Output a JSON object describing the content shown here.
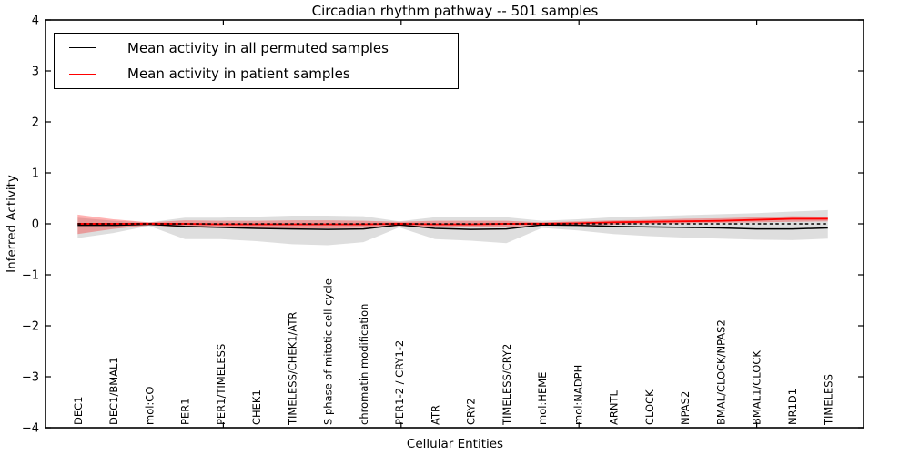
{
  "title": "Circadian rhythm pathway -- 501 samples",
  "legend": {
    "entries": [
      {
        "label": "Mean activity in all permuted samples",
        "color": "#000000"
      },
      {
        "label": "Mean activity in patient samples",
        "color": "#ff0000"
      }
    ]
  },
  "colors": {
    "permuted_line": "#000000",
    "patient_line": "#ff0000",
    "permuted_band": "#000000",
    "patient_band": "#ff0000",
    "zero_line": "#000000",
    "axes": "#000000",
    "background": "#ffffff"
  },
  "chart_data": {
    "type": "line",
    "title": "Circadian rhythm pathway -- 501 samples",
    "xlabel": "Cellular Entities",
    "ylabel": "Inferred Activity",
    "ylim": [
      -4,
      4
    ],
    "yticks": [
      -4,
      -3,
      -2,
      -1,
      0,
      1,
      2,
      3,
      4
    ],
    "yticklabels": [
      "−4",
      "−3",
      "−2",
      "−1",
      "0",
      "1",
      "2",
      "3",
      "4"
    ],
    "grid": false,
    "legend_position": "upper left",
    "categories": [
      "DEC1",
      "DEC1/BMAL1",
      "mol:CO",
      "PER1",
      "PER1/TIMELESS",
      "CHEK1",
      "TIMELESS/CHEK1/ATR",
      "S phase of mitotic cell cycle",
      "chromatin modification",
      "PER1-2 / CRY1-2",
      "ATR",
      "CRY2",
      "TIMELESS/CRY2",
      "mol:HEME",
      "mol:NADPH",
      "ARNTL",
      "CLOCK",
      "NPAS2",
      "BMAL/CLOCK/NPAS2",
      "BMAL1/CLOCK",
      "NR1D1",
      "TIMELESS"
    ],
    "reference_line": {
      "y": 0,
      "style": "dashed",
      "color": "#000000"
    },
    "series": [
      {
        "name": "Mean activity in all permuted samples",
        "color": "#000000",
        "style": "solid",
        "values": [
          -0.03,
          -0.03,
          -0.01,
          -0.05,
          -0.07,
          -0.09,
          -0.1,
          -0.11,
          -0.1,
          -0.02,
          -0.09,
          -0.11,
          -0.1,
          -0.02,
          -0.03,
          -0.05,
          -0.06,
          -0.07,
          -0.08,
          -0.1,
          -0.1,
          -0.08
        ]
      },
      {
        "name": "Mean activity in patient samples",
        "color": "#ff0000",
        "style": "solid",
        "values": [
          0.0,
          0.0,
          0.0,
          0.0,
          -0.01,
          -0.01,
          -0.01,
          -0.01,
          -0.01,
          0.0,
          -0.01,
          -0.01,
          0.0,
          0.0,
          0.01,
          0.03,
          0.04,
          0.05,
          0.06,
          0.08,
          0.1,
          0.1
        ]
      }
    ],
    "bands": [
      {
        "name": "permuted-samples-band",
        "color": "#000000",
        "opacity": 0.13,
        "upper": [
          0.12,
          0.06,
          0.03,
          0.12,
          0.12,
          0.14,
          0.16,
          0.16,
          0.15,
          0.05,
          0.13,
          0.14,
          0.13,
          0.06,
          0.09,
          0.13,
          0.15,
          0.17,
          0.19,
          0.21,
          0.24,
          0.27
        ],
        "lower": [
          -0.28,
          -0.18,
          -0.04,
          -0.3,
          -0.3,
          -0.34,
          -0.4,
          -0.42,
          -0.36,
          -0.07,
          -0.3,
          -0.33,
          -0.38,
          -0.08,
          -0.13,
          -0.2,
          -0.24,
          -0.27,
          -0.29,
          -0.31,
          -0.32,
          -0.29
        ]
      },
      {
        "name": "patient-samples-band",
        "color": "#ff0000",
        "opacity": 0.3,
        "upper": [
          0.18,
          0.09,
          0.03,
          0.07,
          0.06,
          0.06,
          0.07,
          0.07,
          0.06,
          0.04,
          0.06,
          0.06,
          0.06,
          0.03,
          0.05,
          0.07,
          0.08,
          0.1,
          0.11,
          0.13,
          0.15,
          0.14
        ],
        "lower": [
          -0.2,
          -0.1,
          -0.03,
          -0.07,
          -0.08,
          -0.08,
          -0.09,
          -0.09,
          -0.08,
          -0.04,
          -0.07,
          -0.07,
          -0.06,
          -0.03,
          -0.03,
          -0.02,
          0.0,
          0.01,
          0.02,
          0.03,
          0.04,
          0.05
        ]
      }
    ],
    "x_minor_tick_positions_axis_units": [
      5,
      10,
      15,
      20
    ]
  }
}
